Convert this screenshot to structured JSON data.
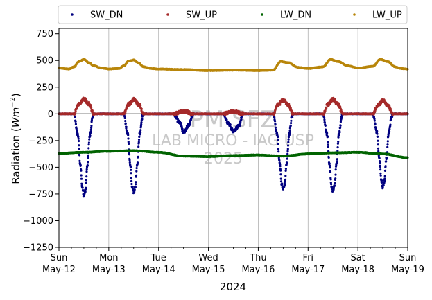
{
  "chart_data": {
    "type": "scatter",
    "title": "",
    "xlabel": "2024",
    "ylabel": "Radiation (Wm⁻²)",
    "ylabel_main": "Radiation (",
    "ylabel_unit": "Wm",
    "ylabel_exp": "−2",
    "ylabel_close": ")",
    "xlim": [
      0,
      7
    ],
    "ylim": [
      -1250,
      800
    ],
    "yticks": [
      -1250,
      -1000,
      -750,
      -500,
      -250,
      0,
      250,
      500,
      750
    ],
    "ytick_labels": [
      "−1250",
      "−1000",
      "−750",
      "−500",
      "−250",
      "0",
      "250",
      "500",
      "750"
    ],
    "xticks": [
      {
        "x": 0,
        "day": "Sun",
        "date": "May-12"
      },
      {
        "x": 1,
        "day": "Mon",
        "date": "May-13"
      },
      {
        "x": 2,
        "day": "Tue",
        "date": "May-14"
      },
      {
        "x": 3,
        "day": "Wed",
        "date": "May-15"
      },
      {
        "x": 4,
        "day": "Thu",
        "date": "May-16"
      },
      {
        "x": 5,
        "day": "Fri",
        "date": "May-17"
      },
      {
        "x": 6,
        "day": "Sat",
        "date": "May-18"
      },
      {
        "x": 7,
        "day": "Sun",
        "date": "May-19"
      }
    ],
    "grid": "vertical",
    "zero_line": 0,
    "legend_position": "top, outside",
    "watermark": [
      "PM SFZ",
      "LAB MICRO - IAG USP",
      "2025"
    ],
    "series": [
      {
        "name": "SW_DN",
        "color": "#000080",
        "x": [
          0.3,
          0.38,
          0.43,
          0.47,
          0.5,
          0.53,
          0.57,
          0.62,
          0.68,
          0.7,
          1.3,
          1.38,
          1.43,
          1.47,
          1.5,
          1.53,
          1.57,
          1.62,
          1.68,
          1.7,
          2.3,
          2.42,
          2.5,
          2.6,
          2.7,
          3.3,
          3.4,
          3.5,
          3.6,
          3.7,
          4.3,
          4.38,
          4.43,
          4.47,
          4.5,
          4.53,
          4.57,
          4.62,
          4.68,
          4.7,
          5.3,
          5.38,
          5.43,
          5.47,
          5.5,
          5.53,
          5.57,
          5.62,
          5.68,
          5.7,
          6.3,
          6.38,
          6.43,
          6.47,
          6.5,
          6.53,
          6.57,
          6.62,
          6.68,
          6.7
        ],
        "y": [
          0,
          -200,
          -480,
          -700,
          -770,
          -720,
          -480,
          -200,
          -20,
          0,
          0,
          -190,
          -470,
          -680,
          -730,
          -690,
          -470,
          -190,
          -20,
          0,
          0,
          -80,
          -170,
          -110,
          0,
          0,
          -90,
          -160,
          -120,
          0,
          0,
          -190,
          -460,
          -660,
          -700,
          -660,
          -460,
          -190,
          -20,
          0,
          0,
          -190,
          -470,
          -680,
          -720,
          -680,
          -470,
          -190,
          -20,
          0,
          0,
          -170,
          -420,
          -620,
          -690,
          -630,
          -420,
          -170,
          -20,
          0
        ]
      },
      {
        "name": "SW_UP",
        "color": "#a52a2a",
        "x": [
          0.3,
          0.4,
          0.5,
          0.6,
          0.7,
          1.3,
          1.4,
          1.5,
          1.6,
          1.7,
          2.3,
          2.5,
          2.7,
          3.3,
          3.5,
          3.7,
          4.3,
          4.4,
          4.5,
          4.6,
          4.7,
          5.3,
          5.4,
          5.5,
          5.6,
          5.7,
          6.3,
          6.4,
          6.5,
          6.6,
          6.7
        ],
        "y": [
          0,
          95,
          140,
          95,
          0,
          0,
          90,
          135,
          90,
          0,
          0,
          25,
          0,
          0,
          25,
          0,
          0,
          85,
          130,
          85,
          0,
          0,
          90,
          135,
          90,
          0,
          0,
          80,
          125,
          80,
          0
        ]
      },
      {
        "name": "LW_DN",
        "color": "#006400",
        "x": [
          0.0,
          0.5,
          1.0,
          1.5,
          2.0,
          2.5,
          3.0,
          3.5,
          4.0,
          4.5,
          5.0,
          5.5,
          6.0,
          6.5,
          7.0
        ],
        "y": [
          -370,
          -360,
          -350,
          -345,
          -360,
          -395,
          -400,
          -390,
          -385,
          -395,
          -375,
          -365,
          -360,
          -375,
          -410
        ]
      },
      {
        "name": "LW_UP",
        "color": "#b8860b",
        "x": [
          0.0,
          0.2,
          0.3,
          0.4,
          0.5,
          0.6,
          0.7,
          0.85,
          1.0,
          1.2,
          1.3,
          1.4,
          1.5,
          1.6,
          1.7,
          1.85,
          2.0,
          2.5,
          3.0,
          3.5,
          4.0,
          4.3,
          4.45,
          4.6,
          4.8,
          5.0,
          5.3,
          5.45,
          5.6,
          5.8,
          6.0,
          6.3,
          6.45,
          6.6,
          6.75,
          6.85,
          7.0
        ],
        "y": [
          430,
          420,
          440,
          490,
          510,
          480,
          450,
          430,
          420,
          425,
          450,
          495,
          505,
          475,
          440,
          425,
          420,
          415,
          405,
          410,
          405,
          410,
          490,
          480,
          435,
          425,
          440,
          510,
          490,
          450,
          430,
          445,
          510,
          490,
          440,
          425,
          420
        ]
      }
    ]
  }
}
